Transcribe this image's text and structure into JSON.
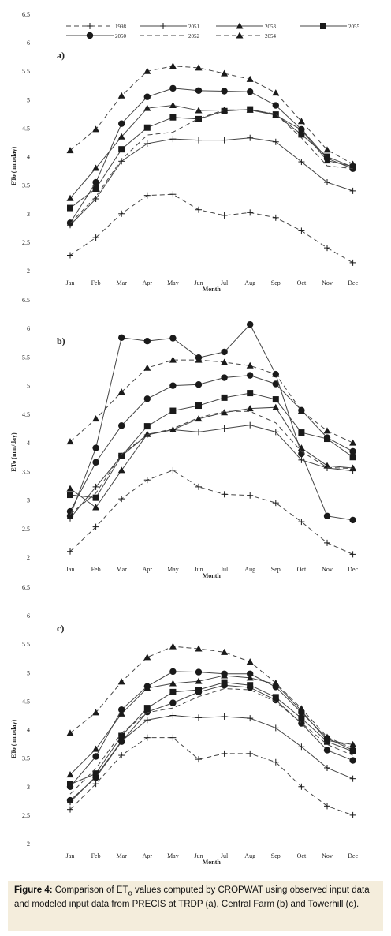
{
  "chart_data": [
    {
      "type": "line",
      "panel_label": "a)",
      "xlabel": "Month",
      "ylabel": "ETo (mm/day)",
      "ylim": [
        2,
        6.5
      ],
      "yticks": [
        "2",
        "2.5",
        "3",
        "3.5",
        "4",
        "4.5",
        "5",
        "5.5",
        "6",
        "6.5"
      ],
      "categories": [
        "Jan",
        "Feb",
        "Mar",
        "Apr",
        "May",
        "Jun",
        "Jul",
        "Aug",
        "Sep",
        "Oct",
        "Nov",
        "Dec"
      ],
      "series": [
        {
          "name": "1998",
          "values": [
            2.27,
            2.58,
            3.0,
            3.32,
            3.34,
            3.07,
            2.97,
            3.02,
            2.93,
            2.7,
            2.4,
            2.14
          ]
        },
        {
          "name": "2051",
          "values": [
            2.8,
            3.26,
            3.92,
            4.23,
            4.31,
            4.29,
            4.29,
            4.33,
            4.26,
            3.91,
            3.55,
            3.4
          ]
        },
        {
          "name": "2053",
          "values": [
            3.27,
            3.8,
            4.35,
            4.85,
            4.9,
            4.81,
            4.82,
            4.82,
            4.73,
            4.47,
            3.93,
            3.83
          ]
        },
        {
          "name": "2055",
          "values": [
            3.1,
            3.44,
            4.13,
            4.51,
            4.69,
            4.66,
            4.8,
            4.83,
            4.74,
            4.39,
            4.0,
            3.82
          ]
        },
        {
          "name": "2050",
          "values": [
            2.84,
            3.55,
            4.58,
            5.05,
            5.2,
            5.16,
            5.15,
            5.14,
            4.9,
            4.48,
            3.97,
            3.79
          ]
        },
        {
          "name": "2052",
          "values": [
            2.83,
            3.3,
            3.95,
            4.38,
            4.43,
            4.67,
            4.82,
            4.82,
            4.75,
            4.33,
            3.84,
            3.79
          ]
        },
        {
          "name": "2054",
          "values": [
            4.11,
            4.48,
            5.07,
            5.5,
            5.59,
            5.56,
            5.46,
            5.36,
            5.12,
            4.62,
            4.12,
            3.87
          ]
        }
      ]
    },
    {
      "type": "line",
      "panel_label": "b)",
      "xlabel": "Month",
      "ylabel": "ETo (mm/day)",
      "ylim": [
        2,
        6.5
      ],
      "yticks": [
        "2",
        "2.5",
        "3",
        "3.5",
        "4",
        "4.5",
        "5",
        "5.5",
        "6",
        "6.5"
      ],
      "categories": [
        "Jan",
        "Feb",
        "Mar",
        "Apr",
        "May",
        "Jun",
        "Jul",
        "Aug",
        "Sep",
        "Oct",
        "Nov",
        "Dec"
      ],
      "series": [
        {
          "name": "1998",
          "values": [
            2.1,
            2.53,
            3.02,
            3.35,
            3.52,
            3.23,
            3.1,
            3.08,
            2.95,
            2.62,
            2.25,
            2.05
          ]
        },
        {
          "name": "2051",
          "values": [
            2.68,
            3.23,
            3.77,
            4.14,
            4.23,
            4.19,
            4.25,
            4.31,
            4.19,
            3.7,
            3.56,
            3.51
          ]
        },
        {
          "name": "2053",
          "values": [
            3.2,
            2.87,
            3.52,
            4.15,
            4.23,
            4.42,
            4.53,
            4.6,
            4.62,
            3.91,
            3.6,
            3.56
          ]
        },
        {
          "name": "2055",
          "values": [
            3.09,
            3.04,
            3.77,
            4.29,
            4.56,
            4.65,
            4.79,
            4.87,
            4.76,
            4.18,
            4.07,
            3.75
          ]
        },
        {
          "name": "2050",
          "values": [
            2.8,
            3.66,
            4.3,
            4.77,
            5.0,
            5.02,
            5.14,
            5.18,
            5.03,
            4.57,
            4.09,
            3.85
          ]
        },
        {
          "name": "2050",
          "values": [
            2.72,
            3.91,
            5.84,
            5.78,
            5.83,
            5.49,
            5.59,
            6.07,
            5.2,
            3.81,
            2.72,
            2.65
          ]
        },
        {
          "name": "2052",
          "values": [
            2.75,
            3.12,
            3.8,
            4.14,
            4.25,
            4.44,
            4.55,
            4.55,
            4.35,
            3.85,
            3.57,
            3.55
          ]
        },
        {
          "name": "2054",
          "values": [
            4.02,
            4.42,
            4.89,
            5.31,
            5.45,
            5.45,
            5.41,
            5.35,
            5.2,
            4.56,
            4.21,
            4.0
          ]
        }
      ]
    },
    {
      "type": "line",
      "panel_label": "c)",
      "xlabel": "Month",
      "ylabel": "ETo (mm/day)",
      "ylim": [
        2,
        6.5
      ],
      "yticks": [
        "2",
        "2.5",
        "3",
        "3.5",
        "4",
        "4.5",
        "5",
        "5.5",
        "6",
        "6.5"
      ],
      "categories": [
        "Jan",
        "Feb",
        "Mar",
        "Apr",
        "May",
        "Jun",
        "Jul",
        "Aug",
        "Sep",
        "Oct",
        "Nov",
        "Dec"
      ],
      "series": [
        {
          "name": "1998",
          "values": [
            2.6,
            3.05,
            3.55,
            3.86,
            3.86,
            3.48,
            3.58,
            3.58,
            3.43,
            3.0,
            2.66,
            2.5
          ]
        },
        {
          "name": "2051",
          "values": [
            2.73,
            3.18,
            3.8,
            4.17,
            4.25,
            4.21,
            4.23,
            4.2,
            4.03,
            3.7,
            3.33,
            3.14
          ]
        },
        {
          "name": "2053",
          "values": [
            3.21,
            3.66,
            4.28,
            4.73,
            4.81,
            4.85,
            4.95,
            4.91,
            4.8,
            4.33,
            3.81,
            3.74
          ]
        },
        {
          "name": "2055",
          "values": [
            3.04,
            3.23,
            3.89,
            4.38,
            4.66,
            4.7,
            4.83,
            4.78,
            4.57,
            4.2,
            3.79,
            3.62
          ]
        },
        {
          "name": "2050",
          "values": [
            2.76,
            3.16,
            3.79,
            4.31,
            4.47,
            4.66,
            4.78,
            4.74,
            4.52,
            4.11,
            3.64,
            3.46
          ]
        },
        {
          "name": "2050",
          "values": [
            3.0,
            3.53,
            4.35,
            4.76,
            5.02,
            5.01,
            4.98,
            4.98,
            4.75,
            4.3,
            3.85,
            3.64
          ]
        },
        {
          "name": "2052",
          "values": [
            2.87,
            3.32,
            3.94,
            4.3,
            4.38,
            4.58,
            4.72,
            4.7,
            4.49,
            4.12,
            3.74,
            3.55
          ]
        },
        {
          "name": "2054",
          "values": [
            3.94,
            4.3,
            4.84,
            5.27,
            5.46,
            5.42,
            5.36,
            5.19,
            4.82,
            4.37,
            3.87,
            3.67
          ]
        }
      ]
    }
  ],
  "series_styles": {
    "1998": {
      "dash": "dashed",
      "marker": "plus"
    },
    "2051": {
      "dash": "solid",
      "marker": "plus"
    },
    "2053": {
      "dash": "solid",
      "marker": "triangle"
    },
    "2055": {
      "dash": "solid",
      "marker": "square"
    },
    "2050": {
      "dash": "solid",
      "marker": "circle"
    },
    "2052": {
      "dash": "dashed",
      "marker": "none"
    },
    "2054": {
      "dash": "dashed",
      "marker": "triangle"
    }
  },
  "legend": {
    "placement": "top",
    "row1": [
      "1998",
      "2051",
      "2053",
      "2055"
    ],
    "row2": [
      "2050",
      "2052",
      "2054"
    ]
  },
  "colors": {
    "line": "#444444",
    "marker": "#1a1a1a",
    "caption_bg": "#f4eddc"
  },
  "caption": {
    "label": "Figure 4:",
    "text_before_sub": "Comparison of ET",
    "subscript": "o",
    "text_after_sub": " values computed by CROPWAT using observed input data and modeled input data from PRECIS at TRDP (a), Central Farm (b) and Towerhill (c)."
  }
}
